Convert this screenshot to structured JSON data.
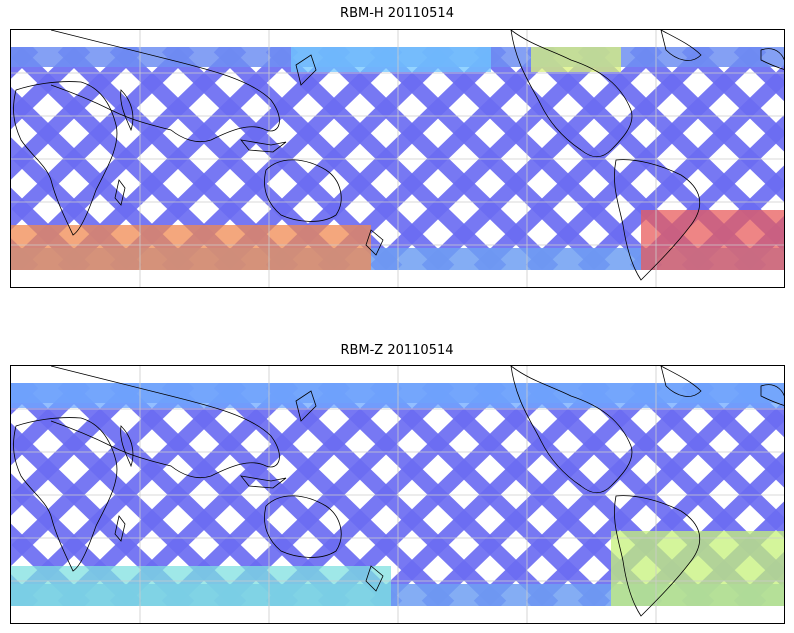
{
  "panels": [
    {
      "id": "top",
      "title": "RBM-H 20110514",
      "swath_color": "#6b6cf2",
      "regions": [
        {
          "name": "north-pacific-band",
          "color": "#70c6ff"
        },
        {
          "name": "south-band",
          "color": "#f08a52"
        },
        {
          "name": "south-atlantic-hotspot",
          "color": "#e85c5c"
        },
        {
          "name": "north-band-warm",
          "color": "#d9f27a"
        }
      ]
    },
    {
      "id": "bottom",
      "title": "RBM-Z 20110514",
      "swath_color": "#6b6cf2",
      "regions": [
        {
          "name": "north-band",
          "color": "#6fa8ff"
        },
        {
          "name": "south-band",
          "color": "#7fe0e0"
        },
        {
          "name": "south-atlantic-band",
          "color": "#c6f27a"
        }
      ]
    }
  ],
  "colors": {
    "frame": "#000000",
    "grid": "#cccccc",
    "coast": "#000000"
  }
}
